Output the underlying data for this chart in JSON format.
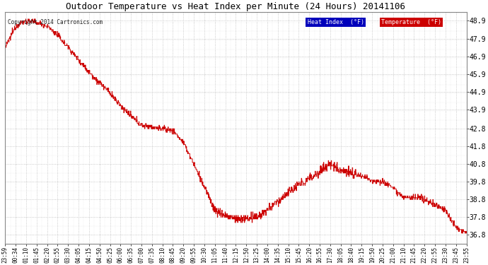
{
  "title": "Outdoor Temperature vs Heat Index per Minute (24 Hours) 20141106",
  "copyright": "Copyright 2014 Cartronics.com",
  "ylim": [
    36.3,
    49.4
  ],
  "yticks": [
    36.8,
    37.8,
    38.8,
    39.8,
    40.8,
    41.8,
    42.8,
    43.9,
    44.9,
    45.9,
    46.9,
    47.9,
    48.9
  ],
  "bg_color": "#ffffff",
  "plot_bg_color": "#ffffff",
  "grid_color": "#bbbbbb",
  "line_color": "#cc0000",
  "legend_hi_bg": "#0000bb",
  "legend_temp_bg": "#cc0000",
  "title_fontsize": 9,
  "xtick_labels": [
    "23:59",
    "00:34",
    "01:10",
    "01:45",
    "02:20",
    "02:55",
    "03:30",
    "04:05",
    "04:15",
    "04:50",
    "05:25",
    "06:00",
    "06:35",
    "07:00",
    "07:35",
    "08:10",
    "08:45",
    "09:20",
    "09:55",
    "10:30",
    "11:05",
    "11:40",
    "12:15",
    "12:50",
    "13:25",
    "14:00",
    "14:35",
    "15:10",
    "15:45",
    "16:20",
    "16:55",
    "17:30",
    "18:05",
    "18:40",
    "19:15",
    "19:50",
    "20:25",
    "21:00",
    "21:10",
    "21:45",
    "22:20",
    "22:55",
    "23:30",
    "23:45",
    "23:55"
  ],
  "waypoints_x": [
    0,
    1,
    2,
    3,
    4,
    5,
    6,
    7,
    8,
    9,
    10,
    11,
    12,
    13,
    14,
    15,
    16,
    17,
    18,
    19,
    20,
    21,
    22,
    23,
    24,
    25,
    26,
    27,
    28,
    29,
    30,
    31,
    32,
    33,
    34,
    35,
    36,
    37,
    38,
    39,
    40,
    41,
    42,
    43,
    44
  ],
  "waypoints_y": [
    47.4,
    48.6,
    48.9,
    48.8,
    48.6,
    48.1,
    47.4,
    46.7,
    46.0,
    45.4,
    44.8,
    44.1,
    43.5,
    43.0,
    42.9,
    42.8,
    42.7,
    42.0,
    40.8,
    39.5,
    38.2,
    37.9,
    37.7,
    37.7,
    37.8,
    38.2,
    38.7,
    39.2,
    39.6,
    40.0,
    40.4,
    40.8,
    40.5,
    40.3,
    40.1,
    39.9,
    39.8,
    39.5,
    38.9,
    38.9,
    38.8,
    38.5,
    38.2,
    37.2,
    36.9
  ]
}
